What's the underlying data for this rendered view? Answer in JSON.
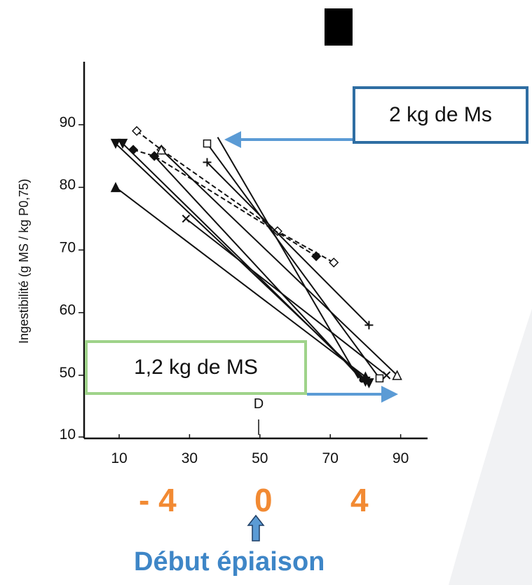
{
  "slide": {
    "annotation_top": "2 kg de Ms",
    "annotation_bottom": "1,2 kg de MS",
    "stage_labels": [
      "- 4",
      "0",
      "4"
    ],
    "footer": "Début épiaison",
    "colors": {
      "stage": "#f28a33",
      "footer": "#3e86c7",
      "arrow": "#5b9bd5",
      "box_top": "#2f6ea3",
      "box_bottom": "#9fd38a"
    }
  },
  "chart_data": {
    "type": "line",
    "ylabel": "Ingestibilité (g MS / kg P0,75)",
    "xlabel": "",
    "x_ticks": [
      "10",
      "30",
      "50",
      "70",
      "90"
    ],
    "y_ticks": [
      "10",
      "50",
      "60",
      "70",
      "80",
      "90"
    ],
    "xlim": [
      0,
      95
    ],
    "ylim": [
      10,
      100
    ],
    "y_axis_break": "between 10 and 50",
    "grid": false,
    "point_label": "D",
    "series": [
      {
        "marker": "open-diamond",
        "dashed": true,
        "points": [
          [
            15,
            89
          ],
          [
            22,
            86
          ],
          [
            55,
            73
          ],
          [
            71,
            68
          ]
        ]
      },
      {
        "marker": "filled-diamond",
        "dashed": true,
        "points": [
          [
            14,
            86
          ],
          [
            20,
            85
          ],
          [
            66,
            69
          ]
        ]
      },
      {
        "marker": "open-triangle",
        "dashed": false,
        "points": [
          [
            22,
            86
          ],
          [
            89,
            50
          ]
        ]
      },
      {
        "marker": "filled-triangle",
        "dashed": false,
        "points": [
          [
            9,
            80
          ],
          [
            80,
            49
          ]
        ]
      },
      {
        "marker": "filled-inverted-triangle",
        "dashed": false,
        "points": [
          [
            9,
            87
          ],
          [
            81,
            45
          ]
        ]
      },
      {
        "marker": "filled-inverted-triangle",
        "dashed": false,
        "points": [
          [
            11,
            87
          ],
          [
            80,
            46
          ]
        ]
      },
      {
        "marker": "open-square",
        "dashed": false,
        "points": [
          [
            35,
            87
          ],
          [
            84,
            48
          ]
        ]
      },
      {
        "marker": "plus",
        "dashed": false,
        "points": [
          [
            35,
            84
          ],
          [
            81,
            58
          ]
        ]
      },
      {
        "marker": "x",
        "dashed": false,
        "points": [
          [
            29,
            75
          ],
          [
            86,
            50
          ]
        ]
      },
      {
        "marker": "filled-circle",
        "dashed": false,
        "points": [
          [
            20,
            85
          ],
          [
            79,
            47
          ]
        ]
      },
      {
        "marker": "none",
        "dashed": false,
        "points": [
          [
            38,
            88
          ],
          [
            78,
            48
          ]
        ]
      }
    ]
  }
}
